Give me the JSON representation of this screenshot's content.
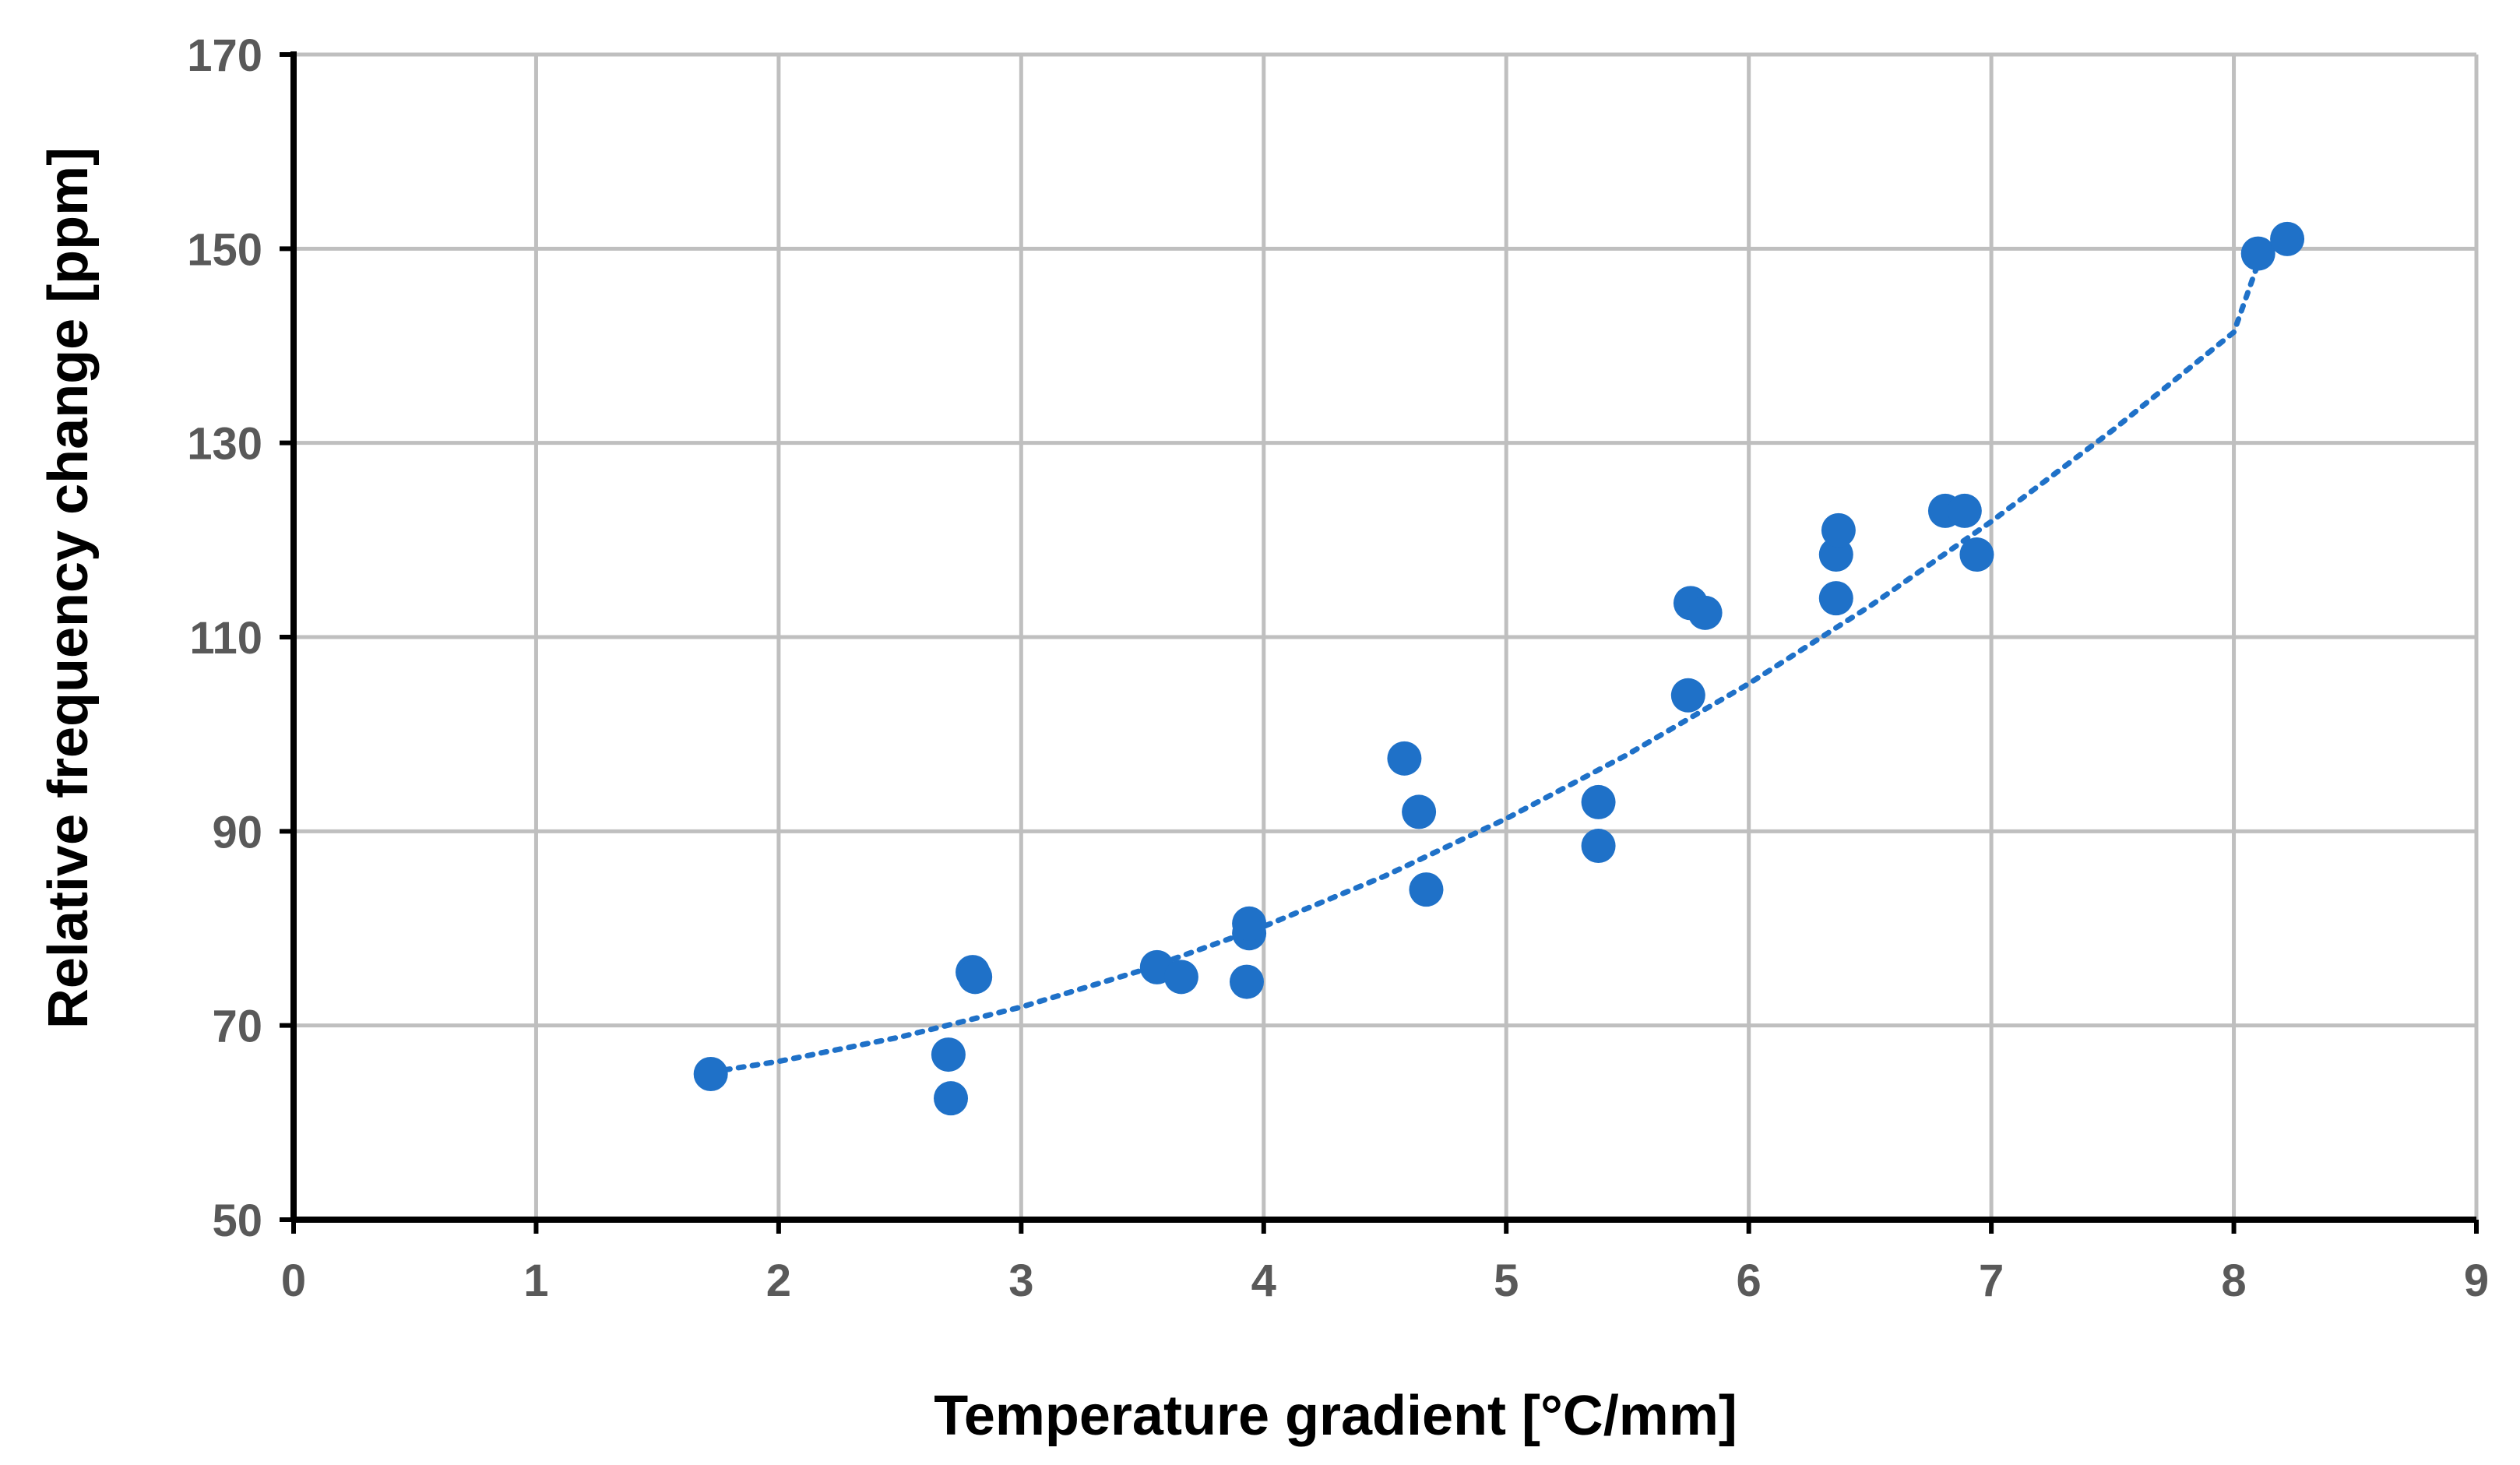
{
  "chart_data": {
    "type": "scatter",
    "title": "",
    "xlabel": "Temperature gradient [°C/mm]",
    "ylabel": "Relative frequency change [ppm]",
    "xlim": [
      0,
      9
    ],
    "ylim": [
      50,
      170
    ],
    "x_ticks": [
      0,
      1,
      2,
      3,
      4,
      5,
      6,
      7,
      8,
      9
    ],
    "y_ticks": [
      50,
      70,
      90,
      110,
      130,
      150,
      170
    ],
    "grid": true,
    "legend": "none",
    "colors": {
      "points": "#1f71c8",
      "trendline": "#1f71c8",
      "grid": "#bfbfbf",
      "axes": "#000000"
    },
    "series": [
      {
        "x": [
          1.72,
          2.7,
          2.71,
          2.8,
          2.81,
          3.56,
          3.66,
          3.93,
          3.94,
          3.94,
          4.58,
          4.64,
          4.67,
          5.38,
          5.38,
          5.75,
          5.76,
          5.82,
          6.36,
          6.36,
          6.37,
          6.81,
          6.89,
          6.94,
          8.1,
          8.22
        ],
        "y": [
          65.0,
          67.0,
          62.5,
          75.5,
          75.0,
          76.0,
          75.0,
          74.5,
          79.5,
          80.5,
          97.5,
          92.0,
          84.0,
          93.0,
          88.5,
          104.0,
          113.5,
          112.5,
          114.0,
          118.5,
          121.0,
          123.0,
          123.0,
          118.5,
          149.5,
          151.0
        ]
      }
    ],
    "trendline": {
      "style": "dotted",
      "type": "polynomial",
      "x": [
        1.72,
        2.0,
        2.5,
        3.0,
        3.5,
        4.0,
        4.5,
        5.0,
        5.5,
        6.0,
        6.5,
        7.0,
        7.5,
        8.0,
        8.1
      ],
      "y": [
        65.2,
        66.3,
        68.8,
        71.9,
        75.7,
        80.2,
        85.4,
        91.3,
        97.9,
        105.2,
        113.2,
        121.9,
        131.3,
        141.4,
        148.5
      ]
    }
  }
}
